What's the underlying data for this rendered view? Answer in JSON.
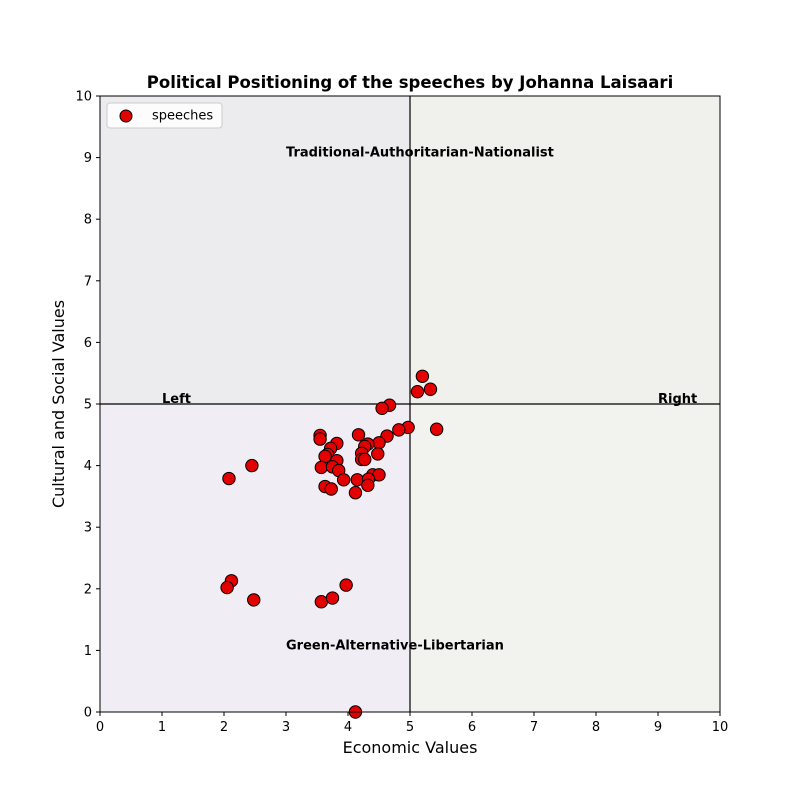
{
  "chart_data": {
    "type": "scatter",
    "title": "Political Positioning of the speeches by Johanna Laisaari",
    "xlabel": "Economic Values",
    "ylabel": "Cultural and Social Values",
    "xlim": [
      0,
      10
    ],
    "ylim": [
      0,
      10
    ],
    "x_ticks": [
      "0",
      "1",
      "2",
      "3",
      "4",
      "5",
      "6",
      "7",
      "8",
      "9",
      "10"
    ],
    "y_ticks": [
      "0",
      "1",
      "2",
      "3",
      "4",
      "5",
      "6",
      "7",
      "8",
      "9",
      "10"
    ],
    "grid": false,
    "legend_position": "top-left",
    "quadrant_colors": {
      "top_left": "#ececef",
      "top_right": "#f0f1ed",
      "bottom_left": "#f0eef4",
      "bottom_right": "#f2f2ee"
    },
    "point_color": "#e30000",
    "point_edge_color": "#000000",
    "center_lines": {
      "x": 5,
      "y": 5
    },
    "annotations": [
      {
        "text": "Traditional-Authoritarian-Nationalist",
        "x": 3,
        "y": 9
      },
      {
        "text": "Green-Alternative-Libertarian",
        "x": 3,
        "y": 1
      },
      {
        "text": "Left",
        "x": 1,
        "y": 5
      },
      {
        "text": "Right",
        "x": 9,
        "y": 5
      }
    ],
    "series": [
      {
        "name": "speeches",
        "points": [
          [
            5.2,
            5.45
          ],
          [
            5.33,
            5.24
          ],
          [
            5.12,
            5.2
          ],
          [
            4.67,
            4.98
          ],
          [
            4.55,
            4.93
          ],
          [
            4.97,
            4.62
          ],
          [
            4.82,
            4.58
          ],
          [
            5.43,
            4.59
          ],
          [
            4.63,
            4.48
          ],
          [
            4.17,
            4.5
          ],
          [
            3.55,
            4.49
          ],
          [
            3.55,
            4.43
          ],
          [
            3.82,
            4.36
          ],
          [
            4.5,
            4.37
          ],
          [
            4.32,
            4.35
          ],
          [
            3.72,
            4.28
          ],
          [
            4.27,
            4.31
          ],
          [
            4.22,
            4.2
          ],
          [
            4.48,
            4.19
          ],
          [
            3.67,
            4.18
          ],
          [
            3.63,
            4.15
          ],
          [
            4.22,
            4.1
          ],
          [
            4.27,
            4.1
          ],
          [
            3.82,
            4.08
          ],
          [
            3.57,
            3.97
          ],
          [
            3.75,
            3.98
          ],
          [
            3.85,
            3.92
          ],
          [
            2.45,
            4.0
          ],
          [
            4.4,
            3.85
          ],
          [
            4.5,
            3.85
          ],
          [
            3.93,
            3.77
          ],
          [
            4.15,
            3.77
          ],
          [
            4.33,
            3.78
          ],
          [
            2.08,
            3.79
          ],
          [
            3.63,
            3.66
          ],
          [
            3.73,
            3.62
          ],
          [
            4.32,
            3.68
          ],
          [
            4.12,
            3.56
          ],
          [
            2.12,
            2.13
          ],
          [
            2.05,
            2.02
          ],
          [
            3.97,
            2.06
          ],
          [
            2.48,
            1.82
          ],
          [
            3.57,
            1.79
          ],
          [
            3.75,
            1.85
          ],
          [
            4.12,
            0.0
          ]
        ]
      }
    ]
  }
}
